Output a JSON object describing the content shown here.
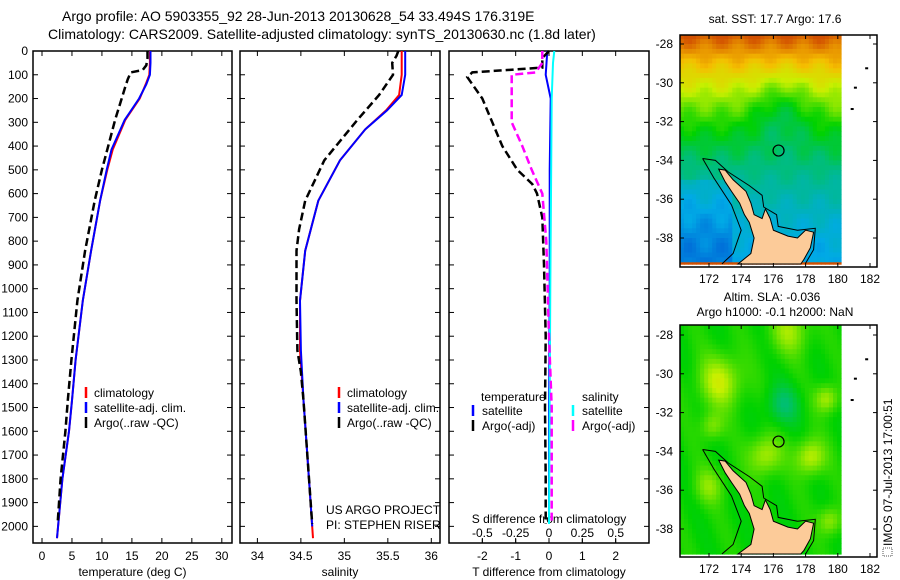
{
  "title": {
    "line1": "Argo profile: AO 5903355_92 28-Jun-2013 20130628_54 33.494S 176.319E",
    "line2": "Climatology: CARS2009. Satellite-adjusted climatology: synTS_20130630.nc (1.8d later)"
  },
  "credit": "IMOS 07-Jul-2013 17:00:51",
  "project": {
    "line1": "US ARGO PROJECT",
    "line2": "PI: STEPHEN RISER"
  },
  "chart_data": {
    "type": "line",
    "depth_axis": {
      "ylim": [
        0,
        2070
      ],
      "ticks": [
        "0",
        "100",
        "200",
        "300",
        "400",
        "500",
        "600",
        "700",
        "800",
        "900",
        "1000",
        "1100",
        "1200",
        "1300",
        "1400",
        "1500",
        "1600",
        "1700",
        "1800",
        "1900",
        "2000"
      ],
      "reversed": true
    },
    "panels": [
      {
        "xlabel": "temperature (deg C)",
        "xlim": [
          -1.5,
          31.7
        ],
        "xticks": [
          "0",
          "5",
          "10",
          "15",
          "20",
          "25",
          "30"
        ],
        "legend_placement": "bottom-left",
        "series": [
          {
            "name": "climatology",
            "color": "#ff0000",
            "style": "solid",
            "depth": [
              0,
              50,
              100,
              140,
              200,
              290,
              415,
              500,
              630,
              840,
              1050,
              1300,
              1470,
              1600,
              1800,
              2050
            ],
            "values": [
              18.0,
              18.0,
              17.9,
              17.3,
              16.3,
              13.9,
              11.8,
              10.9,
              9.7,
              8.2,
              6.8,
              5.6,
              5.0,
              4.5,
              3.4,
              2.5
            ]
          },
          {
            "name": "satellite-adj. clim.",
            "color": "#0000ff",
            "style": "solid",
            "depth": [
              0,
              50,
              100,
              140,
              200,
              290,
              415,
              500,
              630,
              840,
              1050,
              1300,
              1470,
              1600,
              1800,
              2050
            ],
            "values": [
              18.1,
              18.1,
              18.0,
              17.4,
              16.2,
              13.8,
              11.6,
              10.8,
              9.7,
              8.2,
              6.8,
              5.6,
              5.0,
              4.5,
              3.4,
              2.5
            ]
          },
          {
            "name": "Argo(..raw -QC)",
            "color": "#000000",
            "style": "dashed",
            "depth": [
              0,
              30,
              60,
              80,
              90,
              120,
              150,
              200,
              290,
              415,
              500,
              630,
              840,
              1050,
              1300,
              1470,
              1600,
              1800,
              1990
            ],
            "values": [
              17.6,
              17.6,
              17.4,
              16.8,
              14.8,
              14.3,
              13.9,
              13.3,
              12.2,
              10.9,
              10.0,
              8.8,
              7.2,
              5.9,
              4.9,
              4.3,
              3.9,
              3.1,
              2.6
            ]
          }
        ]
      },
      {
        "xlabel": "salinity",
        "xlim": [
          33.8,
          36.1
        ],
        "xticks": [
          "34",
          "34.5",
          "35",
          "35.5",
          "36"
        ],
        "legend_placement": "center-right",
        "series": [
          {
            "name": "climatology",
            "color": "#ff0000",
            "style": "solid",
            "depth": [
              0,
              100,
              185,
              250,
              330,
              460,
              630,
              840,
              1050,
              1260,
              1470,
              1680,
              2050
            ],
            "values": [
              35.66,
              35.66,
              35.63,
              35.48,
              35.24,
              34.95,
              34.7,
              34.55,
              34.49,
              34.49,
              34.53,
              34.57,
              34.64
            ]
          },
          {
            "name": "satellite-adj. clim.",
            "color": "#0000ff",
            "style": "solid",
            "depth": [
              0,
              100,
              185,
              250,
              330,
              460,
              630,
              840,
              1050,
              1260,
              1470,
              1680,
              2000
            ],
            "values": [
              35.7,
              35.7,
              35.66,
              35.49,
              35.24,
              34.95,
              34.7,
              34.55,
              34.49,
              34.5,
              34.53,
              34.57,
              34.63
            ]
          },
          {
            "name": "Argo(..raw -QC)",
            "color": "#000000",
            "style": "dashed",
            "depth": [
              0,
              20,
              50,
              100,
              185,
              290,
              330,
              460,
              630,
              750,
              840,
              1050,
              1260,
              1350,
              1470,
              1680,
              1990
            ],
            "values": [
              35.62,
              35.6,
              35.55,
              35.56,
              35.4,
              35.15,
              35.06,
              34.77,
              34.55,
              34.48,
              34.45,
              34.45,
              34.46,
              34.5,
              34.53,
              34.57,
              34.63
            ]
          }
        ]
      },
      {
        "xlabel": "T difference from climatology",
        "xlabel_secondary": "S difference from climatology",
        "xlim": [
          -3,
          3
        ],
        "xlim_secondary": [
          -0.75,
          0.75
        ],
        "xticks": [
          "-2",
          "-1",
          "0",
          "1",
          "2"
        ],
        "xticks_secondary": [
          "-0.5",
          "-0.25",
          "0",
          "0.25",
          "0.5"
        ],
        "legend_headers": [
          "temperature",
          "salinity"
        ],
        "series": [
          {
            "name": "satellite",
            "group": "temperature",
            "axis": "T",
            "color": "#0000ff",
            "style": "solid",
            "depth": [
              0,
              100,
              200,
              500,
              1000,
              1500,
              1990
            ],
            "values": [
              -0.05,
              -0.1,
              0.05,
              0.02,
              0.02,
              0.0,
              0.0
            ]
          },
          {
            "name": "Argo(-adj)",
            "group": "temperature",
            "axis": "T",
            "color": "#000000",
            "style": "dashed",
            "depth": [
              0,
              30,
              70,
              90,
              110,
              200,
              300,
              400,
              500,
              560,
              600,
              700,
              900,
              1200,
              1500,
              1800,
              1990
            ],
            "values": [
              0,
              -0.2,
              -0.2,
              -2.3,
              -2.45,
              -2.0,
              -1.7,
              -1.4,
              -0.95,
              -0.5,
              -0.36,
              -0.2,
              -0.15,
              -0.1,
              -0.12,
              -0.1,
              -0.1
            ]
          },
          {
            "name": "satellite",
            "group": "salinity",
            "axis": "S",
            "color": "#00ffff",
            "style": "solid",
            "depth": [
              0,
              50,
              200,
              1000,
              1990
            ],
            "values": [
              0.04,
              0.03,
              0.02,
              0.01,
              0.0
            ]
          },
          {
            "name": "Argo(-adj)",
            "group": "salinity",
            "axis": "S",
            "color": "#ff00ff",
            "style": "dashed",
            "depth": [
              0,
              50,
              90,
              100,
              300,
              400,
              500,
              600,
              800,
              1200,
              1500,
              1990
            ],
            "values": [
              -0.05,
              -0.05,
              -0.1,
              -0.28,
              -0.28,
              -0.2,
              -0.13,
              -0.05,
              -0.02,
              0.0,
              0.02,
              0.02
            ]
          }
        ]
      }
    ],
    "maps": [
      {
        "type": "heatmap",
        "title": [
          "sat. SST: 17.7 Argo: 17.6"
        ],
        "field": "SST",
        "xlim": [
          170.2,
          182.4
        ],
        "ylim": [
          -39.4,
          -27.5
        ],
        "xticks": [
          "172",
          "174",
          "176",
          "178",
          "180",
          "182"
        ],
        "yticks": [
          "-28",
          "-30",
          "-32",
          "-34",
          "-36",
          "-38"
        ],
        "argo_position": {
          "lon": 176.319,
          "lat": -33.494
        }
      },
      {
        "type": "heatmap",
        "title": [
          "Altim. SLA: -0.036",
          "Argo h1000: -0.1 h2000: NaN"
        ],
        "field": "SLA",
        "xlim": [
          170.2,
          182.4
        ],
        "ylim": [
          -39.4,
          -27.5
        ],
        "xticks": [
          "172",
          "174",
          "176",
          "178",
          "180",
          "182"
        ],
        "yticks": [
          "-28",
          "-30",
          "-32",
          "-34",
          "-36",
          "-38"
        ],
        "argo_position": {
          "lon": 176.319,
          "lat": -33.494
        }
      }
    ],
    "colors": {
      "land": "#fccb99",
      "frame": "#000000"
    }
  }
}
